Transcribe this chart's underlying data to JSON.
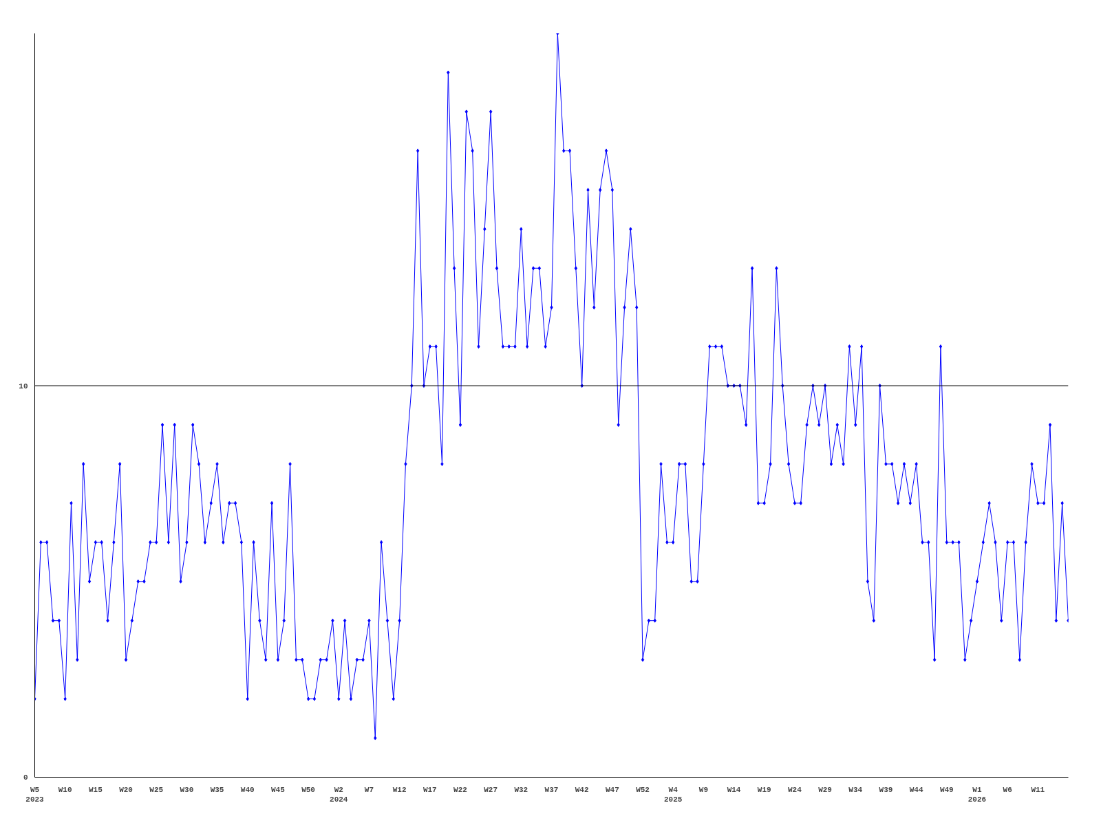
{
  "chart_data": {
    "type": "line",
    "categories": [
      "W5\n2023",
      null,
      null,
      null,
      null,
      "W10",
      null,
      null,
      null,
      null,
      "W15",
      null,
      null,
      null,
      null,
      "W20",
      null,
      null,
      null,
      null,
      "W25",
      null,
      null,
      null,
      null,
      "W30",
      null,
      null,
      null,
      null,
      "W35",
      null,
      null,
      null,
      null,
      "W40",
      null,
      null,
      null,
      null,
      "W45",
      null,
      null,
      null,
      null,
      "W50",
      null,
      null,
      null,
      null,
      "W2\n2024",
      null,
      null,
      null,
      null,
      "W7",
      null,
      null,
      null,
      null,
      "W12",
      null,
      null,
      null,
      null,
      "W17",
      null,
      null,
      null,
      null,
      "W22",
      null,
      null,
      null,
      null,
      "W27",
      null,
      null,
      null,
      null,
      "W32",
      null,
      null,
      null,
      null,
      "W37",
      null,
      null,
      null,
      null,
      "W42",
      null,
      null,
      null,
      null,
      "W47",
      null,
      null,
      null,
      null,
      "W52",
      null,
      null,
      null,
      null,
      "W4\n2025",
      null,
      null,
      null,
      null,
      "W9",
      null,
      null,
      null,
      null,
      "W14",
      null,
      null,
      null,
      null,
      "W19",
      null,
      null,
      null,
      null,
      "W24",
      null,
      null,
      null,
      null,
      "W29",
      null,
      null,
      null,
      null,
      "W34",
      null,
      null,
      null,
      null,
      "W39",
      null,
      null,
      null,
      null,
      "W44",
      null,
      null,
      null,
      null,
      "W49",
      null,
      null,
      null,
      null,
      "W1\n2026",
      null,
      null,
      null,
      null,
      "W6",
      null,
      null,
      null,
      null,
      "W11",
      null,
      null,
      null,
      null,
      null
    ],
    "series": [
      {
        "color": "#0000ff",
        "values": [
          2,
          6,
          6,
          4,
          4,
          2,
          7,
          3,
          8,
          5,
          6,
          6,
          4,
          6,
          8,
          3,
          4,
          5,
          5,
          6,
          6,
          9,
          6,
          9,
          5,
          6,
          9,
          8,
          6,
          7,
          8,
          6,
          7,
          7,
          6,
          2,
          6,
          4,
          3,
          7,
          3,
          4,
          8,
          3,
          3,
          2,
          2,
          3,
          3,
          4,
          2,
          4,
          2,
          3,
          3,
          4,
          1,
          6,
          4,
          2,
          4,
          8,
          10,
          16,
          10,
          11,
          11,
          8,
          18,
          13,
          9,
          17,
          16,
          11,
          14,
          17,
          13,
          11,
          11,
          11,
          14,
          11,
          13,
          13,
          11,
          12,
          19,
          16,
          16,
          13,
          10,
          15,
          12,
          15,
          16,
          15,
          9,
          12,
          14,
          12,
          3,
          4,
          4,
          8,
          6,
          6,
          8,
          8,
          5,
          5,
          8,
          11,
          11,
          11,
          10,
          10,
          10,
          9,
          13,
          7,
          7,
          8,
          13,
          10,
          8,
          7,
          7,
          9,
          10,
          9,
          10,
          8,
          9,
          8,
          11,
          9,
          11,
          5,
          4,
          10,
          8,
          8,
          7,
          8,
          7,
          8,
          6,
          6,
          3,
          11,
          6,
          6,
          6,
          3,
          4,
          5,
          6,
          7,
          6,
          4,
          6,
          6,
          3,
          6,
          8,
          7,
          7,
          9,
          4,
          7,
          4
        ]
      }
    ],
    "ylim": [
      0,
      19
    ],
    "yticks": [
      0,
      10
    ],
    "ref_lines": [
      {
        "axis": "y",
        "value": 10,
        "label": null,
        "color": "#000000"
      }
    ],
    "grid": false,
    "marker": "diamond",
    "line_style": "solid"
  }
}
